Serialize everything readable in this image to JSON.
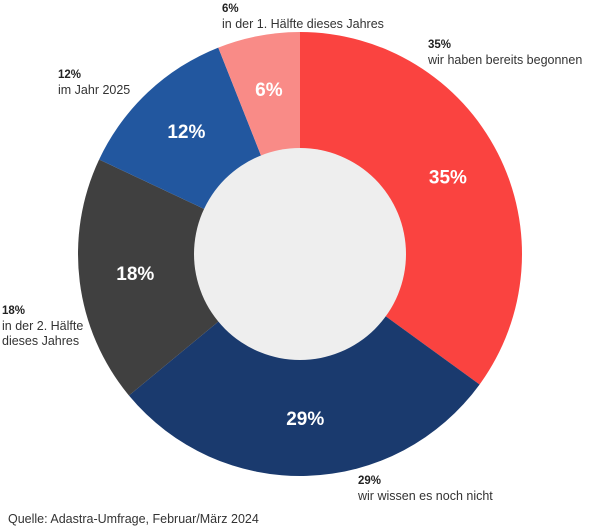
{
  "chart_data": {
    "type": "pie",
    "categories": [
      "wir haben bereits begonnen",
      "wir wissen es noch nicht",
      "in der 2. Hälfte dieses Jahres",
      "im Jahr 2025",
      "in der 1. Hälfte dieses Jahres"
    ],
    "values": [
      35,
      29,
      18,
      12,
      6
    ],
    "value_labels": [
      "35%",
      "29%",
      "18%",
      "12%",
      "6%"
    ],
    "colors": [
      "#fa4340",
      "#1a3a6e",
      "#404040",
      "#22579f",
      "#f98b87"
    ],
    "source": "Quelle: Adastra-Umfrage, Februar/März 2024"
  }
}
